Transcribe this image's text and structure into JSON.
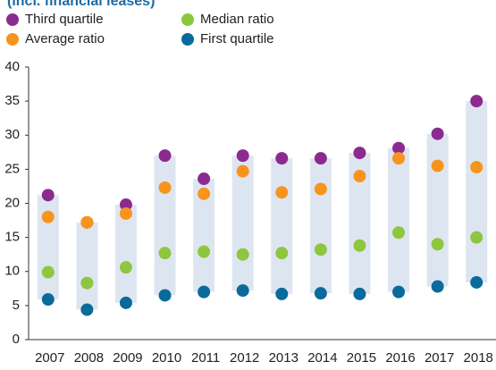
{
  "chart_data": {
    "type": "range_dot",
    "title": "(incl. financial leases)",
    "categories": [
      "2007",
      "2008",
      "2009",
      "2010",
      "2011",
      "2012",
      "2013",
      "2014",
      "2015",
      "2016",
      "2017",
      "2018"
    ],
    "series": [
      {
        "name": "Third quartile",
        "color": "#8b2b8f",
        "values": [
          21.2,
          17.2,
          19.8,
          27,
          23.6,
          27,
          26.6,
          26.6,
          27.4,
          28.1,
          30.2,
          35
        ]
      },
      {
        "name": "Average ratio",
        "color": "#f7941d",
        "values": [
          18,
          17.2,
          18.5,
          22.3,
          21.4,
          24.7,
          21.6,
          22.1,
          24,
          26.6,
          25.5,
          25.3
        ]
      },
      {
        "name": "Median ratio",
        "color": "#8dc63f",
        "values": [
          9.9,
          8.3,
          10.6,
          12.7,
          12.9,
          12.5,
          12.7,
          13.2,
          13.8,
          15.7,
          14,
          15
        ]
      },
      {
        "name": "First quartile",
        "color": "#0b6a9c",
        "values": [
          5.9,
          4.4,
          5.4,
          6.5,
          7,
          7.2,
          6.7,
          6.8,
          6.7,
          7,
          7.8,
          8.4
        ]
      }
    ],
    "band_color": "#dde6f0",
    "ylim": [
      0,
      40
    ],
    "yticks": [
      0,
      5,
      10,
      15,
      20,
      25,
      30,
      35,
      40
    ],
    "grid": false
  }
}
